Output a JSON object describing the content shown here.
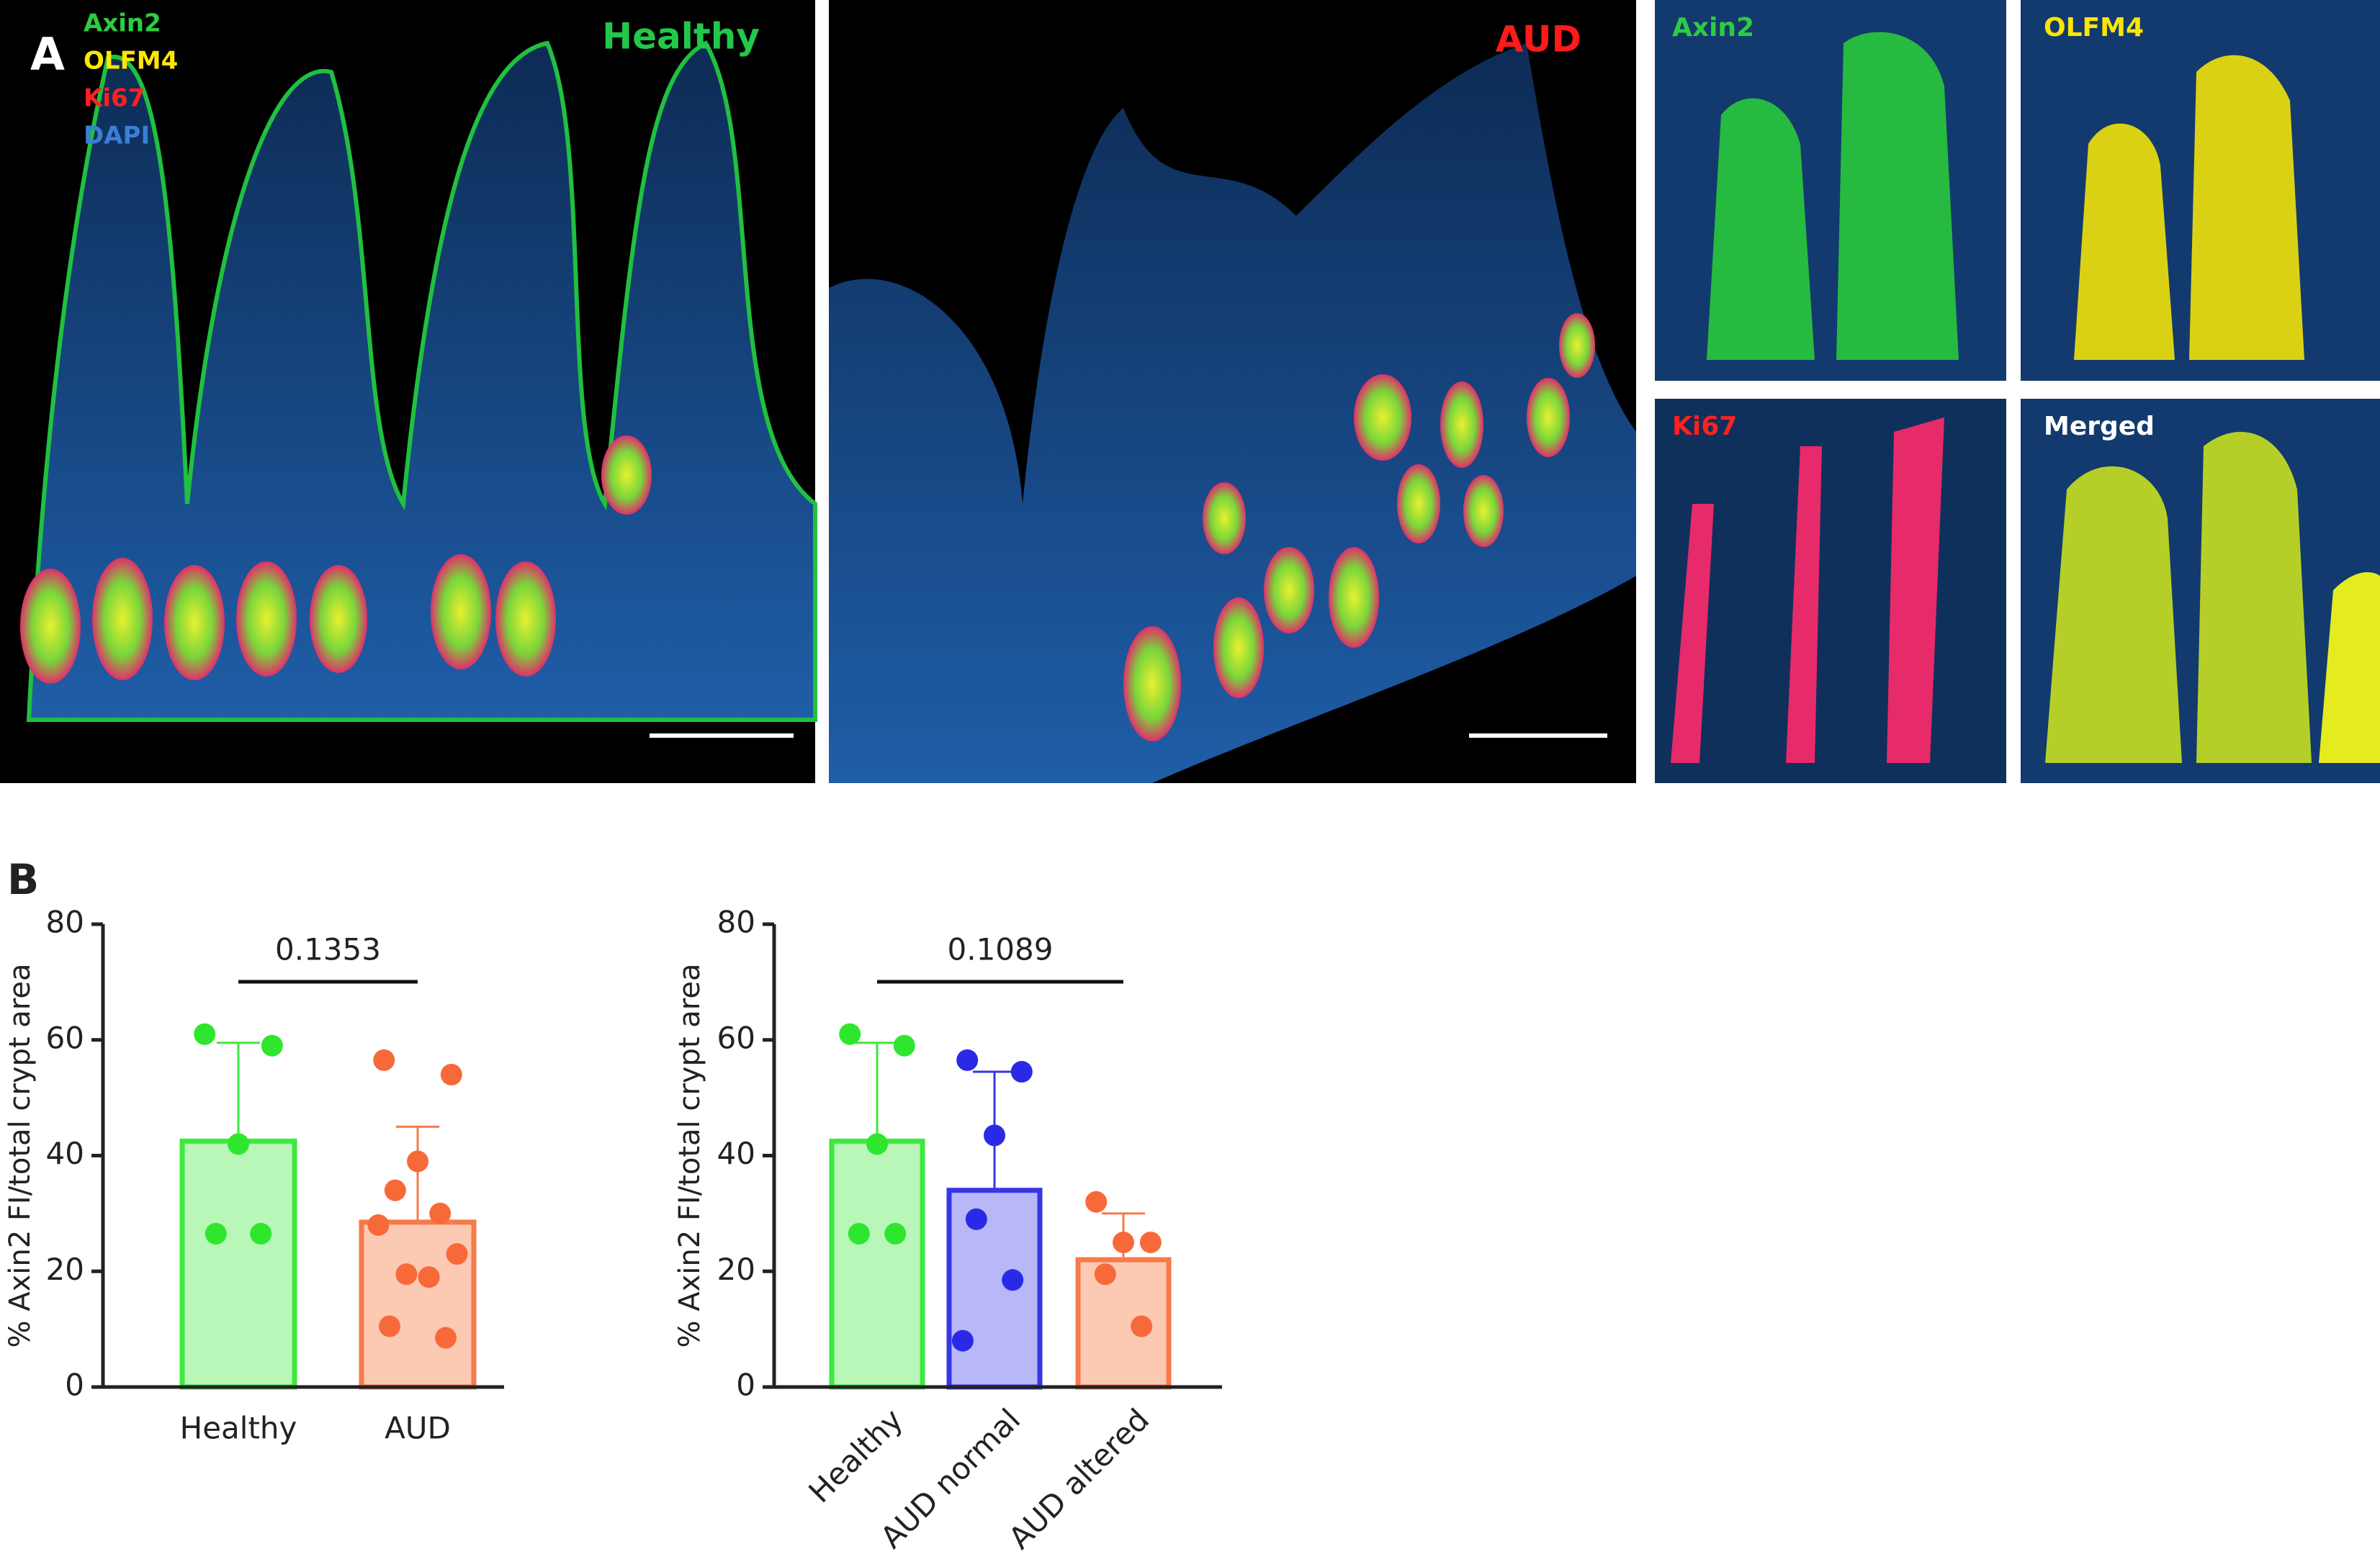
{
  "panel_a": {
    "label": "A",
    "channels": [
      {
        "name": "Axin2",
        "color": "#2ecc40"
      },
      {
        "name": "OLFM4",
        "color": "#ffe600"
      },
      {
        "name": "Ki67",
        "color": "#ff2020"
      },
      {
        "name": "DAPI",
        "color": "#3a7fd6"
      }
    ],
    "images": [
      {
        "label": "Healthy",
        "color": "#22c84a"
      },
      {
        "label": "AUD",
        "color": "#ff1a1a"
      }
    ],
    "insets": [
      {
        "label": "Axin2",
        "color": "#2ecc40"
      },
      {
        "label": "OLFM4",
        "color": "#ffe600"
      },
      {
        "label": "Ki67",
        "color": "#ff2020"
      },
      {
        "label": "Merged",
        "color": "#ffffff"
      }
    ]
  },
  "panel_b": {
    "label": "B"
  },
  "chart_data": [
    {
      "type": "bar",
      "ylabel": "% Axin2 FI/total crypt area",
      "ylim": [
        0,
        80
      ],
      "yticks": [
        0,
        20,
        40,
        60,
        80
      ],
      "categories": [
        "Healthy",
        "AUD"
      ],
      "values": [
        42.5,
        28.5
      ],
      "errors": [
        17,
        16.5
      ],
      "fill_colors": [
        "#b9f7b9",
        "#fcc9b3"
      ],
      "edge_colors": [
        "#3ee83e",
        "#f57b4b"
      ],
      "point_colors": [
        "#2ee62e",
        "#f8693a"
      ],
      "points": [
        [
          61,
          59,
          42,
          26.5,
          26.5
        ],
        [
          56.5,
          54,
          39,
          34,
          30,
          28,
          23,
          19.5,
          19,
          10.5,
          8.5
        ]
      ],
      "significance": {
        "label": "0.1353",
        "from": 0,
        "to": 1
      }
    },
    {
      "type": "bar",
      "ylabel": "% Axin2 FI/total crypt area",
      "ylim": [
        0,
        80
      ],
      "yticks": [
        0,
        20,
        40,
        60,
        80
      ],
      "categories": [
        "Healthy",
        "AUD normal",
        "AUD altered"
      ],
      "values": [
        42.5,
        34,
        22
      ],
      "errors": [
        17,
        20.5,
        8
      ],
      "fill_colors": [
        "#b9f7b9",
        "#b8b8f8",
        "#fcc9b3"
      ],
      "edge_colors": [
        "#3ee83e",
        "#3636e8",
        "#f57b4b"
      ],
      "point_colors": [
        "#2ee62e",
        "#2a2ae6",
        "#f8693a"
      ],
      "points": [
        [
          61,
          59,
          42,
          26.5,
          26.5
        ],
        [
          56.5,
          54.5,
          43.5,
          29,
          18.5,
          8
        ],
        [
          32,
          25,
          25,
          19.5,
          10.5
        ]
      ],
      "significance": {
        "label": "0.1089",
        "from": 0,
        "to": 2
      }
    }
  ]
}
